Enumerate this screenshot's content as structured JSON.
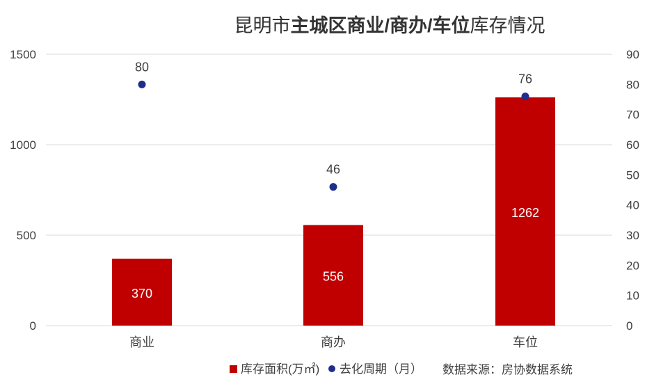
{
  "chart_data": {
    "type": "bar",
    "title_parts": [
      {
        "text": "昆明市",
        "bold": false
      },
      {
        "text": "主城区商业/商办/车位",
        "bold": true
      },
      {
        "text": "库存情况",
        "bold": false
      }
    ],
    "categories": [
      "商业",
      "商办",
      "车位"
    ],
    "series": [
      {
        "name": "库存面积(万㎡)",
        "type": "bar",
        "axis": "left",
        "values": [
          370,
          556,
          1262
        ]
      },
      {
        "name": "去化周期（月）",
        "type": "scatter",
        "axis": "right",
        "values": [
          80,
          46,
          76
        ]
      }
    ],
    "ylim_left": [
      0,
      1500
    ],
    "yticks_left": [
      0,
      500,
      1000,
      1500
    ],
    "ylim_right": [
      0,
      90
    ],
    "yticks_right": [
      0,
      10,
      20,
      30,
      40,
      50,
      60,
      70,
      80,
      90
    ],
    "grid": true,
    "legend_position": "bottom",
    "annotation": "数据来源：房协数据系统",
    "colors": {
      "bar": "#C00000",
      "dot": "#1F2E8C",
      "grid": "#D9D9D9",
      "text": "#404040",
      "bar_label": "#FFFFFF"
    }
  }
}
